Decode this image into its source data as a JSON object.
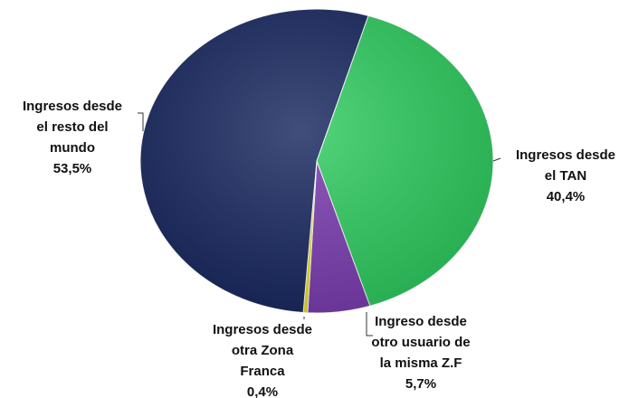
{
  "chart_data": {
    "type": "pie",
    "categories": [
      [
        "Ingresos desde",
        "el TAN"
      ],
      [
        "Ingreso desde",
        "otro usuario de",
        "la misma Z.F"
      ],
      [
        "Ingresos desde",
        "otra Zona",
        "Franca"
      ],
      [
        "Ingresos desde",
        "el resto del",
        "mundo"
      ]
    ],
    "values": [
      40.4,
      5.7,
      0.4,
      53.5
    ],
    "value_labels": [
      "40,4%",
      "5,7%",
      "0,4%",
      "53,5%"
    ],
    "colors": [
      "#2ecc5f",
      "#7a3cb0",
      "#e8e020",
      "#17275f"
    ]
  }
}
